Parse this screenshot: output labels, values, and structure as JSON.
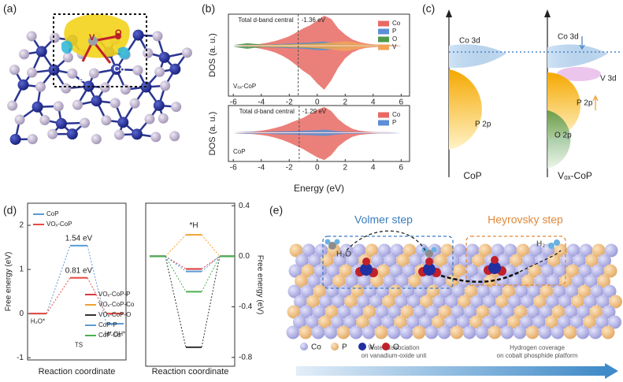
{
  "panels": [
    "(a)",
    "(b)",
    "(c)",
    "(d)",
    "(e)"
  ],
  "structure_a": {
    "labels": [
      "V",
      "O",
      "Co",
      "P"
    ]
  },
  "chart_data": [
    {
      "type": "dos",
      "label": "Vₒₓ-CoP",
      "ylabel": "DOS (a. u.)",
      "xlim": [
        -6.35,
        6.6
      ],
      "xticks": [
        -6,
        -4,
        -2,
        0,
        2,
        4,
        6
      ],
      "ylim": [
        -1.6,
        1.0
      ],
      "x": [
        -6,
        -5.5,
        -5,
        -4.5,
        -4,
        -3.5,
        -3,
        -2.5,
        -2,
        -1.5,
        -1,
        -0.5,
        0,
        0.5,
        1,
        1.5,
        2,
        2.5,
        3,
        3.5,
        4,
        4.5,
        5,
        5.5,
        6
      ],
      "series": [
        {
          "name": "Co",
          "color": "#e86a63",
          "values": [
            0.01,
            0.02,
            0.03,
            0.04,
            0.06,
            0.1,
            0.15,
            0.22,
            0.3,
            0.42,
            0.55,
            0.65,
            0.8,
            0.95,
            0.85,
            0.55,
            0.35,
            0.2,
            0.12,
            0.07,
            0.04,
            0.03,
            0.02,
            0.02,
            0.01
          ],
          "values_down": [
            -0.02,
            -0.03,
            -0.04,
            -0.06,
            -0.1,
            -0.15,
            -0.22,
            -0.32,
            -0.45,
            -0.62,
            -0.8,
            -0.95,
            -1.2,
            -1.4,
            -1.1,
            -0.7,
            -0.4,
            -0.22,
            -0.12,
            -0.07,
            -0.05,
            -0.03,
            -0.02,
            -0.02,
            -0.01
          ]
        },
        {
          "name": "P",
          "color": "#5b8fd6",
          "values": [
            0.03,
            0.04,
            0.05,
            0.04,
            0.03,
            0.04,
            0.05,
            0.06,
            0.07,
            0.08,
            0.09,
            0.1,
            0.12,
            0.13,
            0.1,
            0.07,
            0.05,
            0.04,
            0.03,
            0.03,
            0.02,
            0.02,
            0.03,
            0.02,
            0.02
          ],
          "values_down": [
            -0.03,
            -0.05,
            -0.06,
            -0.05,
            -0.04,
            -0.05,
            -0.06,
            -0.07,
            -0.08,
            -0.09,
            -0.1,
            -0.12,
            -0.14,
            -0.15,
            -0.12,
            -0.08,
            -0.06,
            -0.04,
            -0.03,
            -0.03,
            -0.02,
            -0.02,
            -0.03,
            -0.02,
            -0.02
          ]
        },
        {
          "name": "O",
          "color": "#4f9a4a",
          "values": [
            0.02,
            0.05,
            0.08,
            0.06,
            0.04,
            0.03,
            0.04,
            0.04,
            0.05,
            0.05,
            0.06,
            0.07,
            0.08,
            0.09,
            0.07,
            0.05,
            0.04,
            0.03,
            0.02,
            0.02,
            0.02,
            0.01,
            0.02,
            0.01,
            0.01
          ],
          "values_down": [
            -0.03,
            -0.07,
            -0.1,
            -0.07,
            -0.05,
            -0.04,
            -0.05,
            -0.05,
            -0.06,
            -0.06,
            -0.07,
            -0.08,
            -0.09,
            -0.1,
            -0.08,
            -0.06,
            -0.04,
            -0.03,
            -0.02,
            -0.02,
            -0.02,
            -0.01,
            -0.02,
            -0.01,
            -0.01
          ]
        },
        {
          "name": "V",
          "color": "#f2a45a",
          "values": [
            0.01,
            0.01,
            0.02,
            0.02,
            0.02,
            0.03,
            0.03,
            0.04,
            0.04,
            0.05,
            0.05,
            0.06,
            0.07,
            0.08,
            0.1,
            0.12,
            0.14,
            0.12,
            0.08,
            0.05,
            0.04,
            0.03,
            0.02,
            0.02,
            0.01
          ],
          "values_down": [
            -0.01,
            -0.01,
            -0.02,
            -0.02,
            -0.03,
            -0.03,
            -0.04,
            -0.04,
            -0.05,
            -0.06,
            -0.06,
            -0.07,
            -0.08,
            -0.1,
            -0.12,
            -0.15,
            -0.17,
            -0.14,
            -0.09,
            -0.06,
            -0.04,
            -0.03,
            -0.02,
            -0.02,
            -0.01
          ]
        }
      ],
      "d_band_center": -1.36,
      "d_band_label": "-1.36 eV",
      "annotation": "Total d-band central"
    },
    {
      "type": "dos",
      "label": "CoP",
      "ylabel": "DOS (a. u.)",
      "xlabel": "Energy (eV)",
      "xlim": [
        -6.35,
        6.6
      ],
      "xticks": [
        -6,
        -4,
        -2,
        0,
        2,
        4,
        6
      ],
      "ylim": [
        -1.05,
        1.0
      ],
      "x": [
        -6,
        -5.5,
        -5,
        -4.5,
        -4,
        -3.5,
        -3,
        -2.5,
        -2,
        -1.5,
        -1,
        -0.5,
        0,
        0.5,
        1,
        1.5,
        2,
        2.5,
        3,
        3.5,
        4,
        4.5,
        5,
        5.5,
        6
      ],
      "series": [
        {
          "name": "Co",
          "color": "#e86a63",
          "values": [
            0.01,
            0.02,
            0.03,
            0.05,
            0.08,
            0.12,
            0.18,
            0.25,
            0.35,
            0.45,
            0.55,
            0.7,
            0.85,
            0.95,
            0.8,
            0.5,
            0.3,
            0.15,
            0.08,
            0.05,
            0.03,
            0.02,
            0.02,
            0.01,
            0.01
          ],
          "values_down": [
            -0.01,
            -0.02,
            -0.03,
            -0.05,
            -0.08,
            -0.12,
            -0.18,
            -0.26,
            -0.36,
            -0.48,
            -0.6,
            -0.75,
            -0.9,
            -1.0,
            -0.82,
            -0.5,
            -0.3,
            -0.15,
            -0.08,
            -0.05,
            -0.03,
            -0.02,
            -0.02,
            -0.01,
            -0.01
          ]
        },
        {
          "name": "P",
          "color": "#5b8fd6",
          "values": [
            0.02,
            0.03,
            0.04,
            0.04,
            0.03,
            0.04,
            0.05,
            0.06,
            0.06,
            0.07,
            0.08,
            0.09,
            0.1,
            0.12,
            0.09,
            0.06,
            0.04,
            0.03,
            0.03,
            0.02,
            0.02,
            0.02,
            0.02,
            0.02,
            0.01
          ],
          "values_down": [
            -0.02,
            -0.03,
            -0.04,
            -0.04,
            -0.03,
            -0.04,
            -0.05,
            -0.06,
            -0.06,
            -0.07,
            -0.08,
            -0.09,
            -0.1,
            -0.12,
            -0.09,
            -0.06,
            -0.04,
            -0.03,
            -0.03,
            -0.02,
            -0.02,
            -0.02,
            -0.02,
            -0.02,
            -0.01
          ]
        }
      ],
      "d_band_center": -1.29,
      "d_band_label": "-1.29 eV",
      "annotation": "Total d-band central"
    },
    {
      "type": "energy-diagram",
      "ylabel": "Free energy (eV)",
      "xlabel": "Reaction coordinate",
      "categories": [
        "H₂O*",
        "TS",
        "H* OH*"
      ],
      "ylim": [
        -1.05,
        2.5
      ],
      "yticks": [
        -1,
        0,
        1,
        2
      ],
      "legend": "upper left",
      "series": [
        {
          "name": "CoP",
          "color": "#5b9bd5",
          "values": [
            0,
            1.54,
            -0.23
          ],
          "value_labels": [
            null,
            "1.54 eV",
            null
          ]
        },
        {
          "name": "VOₓ-CoP",
          "color": "#e8493f",
          "values": [
            0,
            0.81,
            0
          ],
          "value_labels": [
            null,
            "0.81 eV",
            null
          ]
        }
      ]
    },
    {
      "type": "energy-diagram",
      "ylabel": "Free energy (eV)",
      "xlabel": "Reaction coordinate",
      "annotation": "*H",
      "y_axis_side": "right",
      "ylim": [
        -0.87,
        0.42
      ],
      "yticks": [
        0.4,
        {
          "value": 0,
          "label": "0.0"
        },
        -0.4,
        -0.8
      ],
      "legend": "lower left",
      "series": [
        {
          "name": "VOₓ-CoP-P",
          "color": "#d9383a",
          "values": [
            0,
            -0.1,
            0
          ]
        },
        {
          "name": "VOₓ-CoP-Co",
          "color": "#f0a030",
          "values": [
            0,
            0.17,
            0
          ]
        },
        {
          "name": "VOₓ-CoP-O",
          "color": "#333333",
          "values": [
            0,
            -0.72,
            0
          ]
        },
        {
          "name": "CoP-P",
          "color": "#5b9bd5",
          "values": [
            0,
            -0.12,
            0
          ]
        },
        {
          "name": "CoP-Co",
          "color": "#4caf50",
          "values": [
            0,
            -0.28,
            0
          ]
        }
      ]
    }
  ],
  "diagram_c": {
    "cop": {
      "label": "CoP",
      "orbitals": [
        "Co 3d",
        "P 2p"
      ]
    },
    "vox": {
      "label": "Vₒₓ-CoP",
      "orbitals": [
        "Co 3d",
        "V 3d",
        "P 2p",
        "O 2p"
      ]
    }
  },
  "scene_e": {
    "step_left": "Volmer step",
    "step_right": "Heyrovsky step",
    "molecule_left": "H₂O",
    "molecule_right": "H₂",
    "legend": [
      "Co",
      "P",
      "V",
      "O"
    ],
    "caption_left": [
      "Water dissociation",
      "on vanadium-oxide unit"
    ],
    "caption_right": [
      "Hydrogen coverage",
      "on cobalt phosphide platform"
    ]
  }
}
